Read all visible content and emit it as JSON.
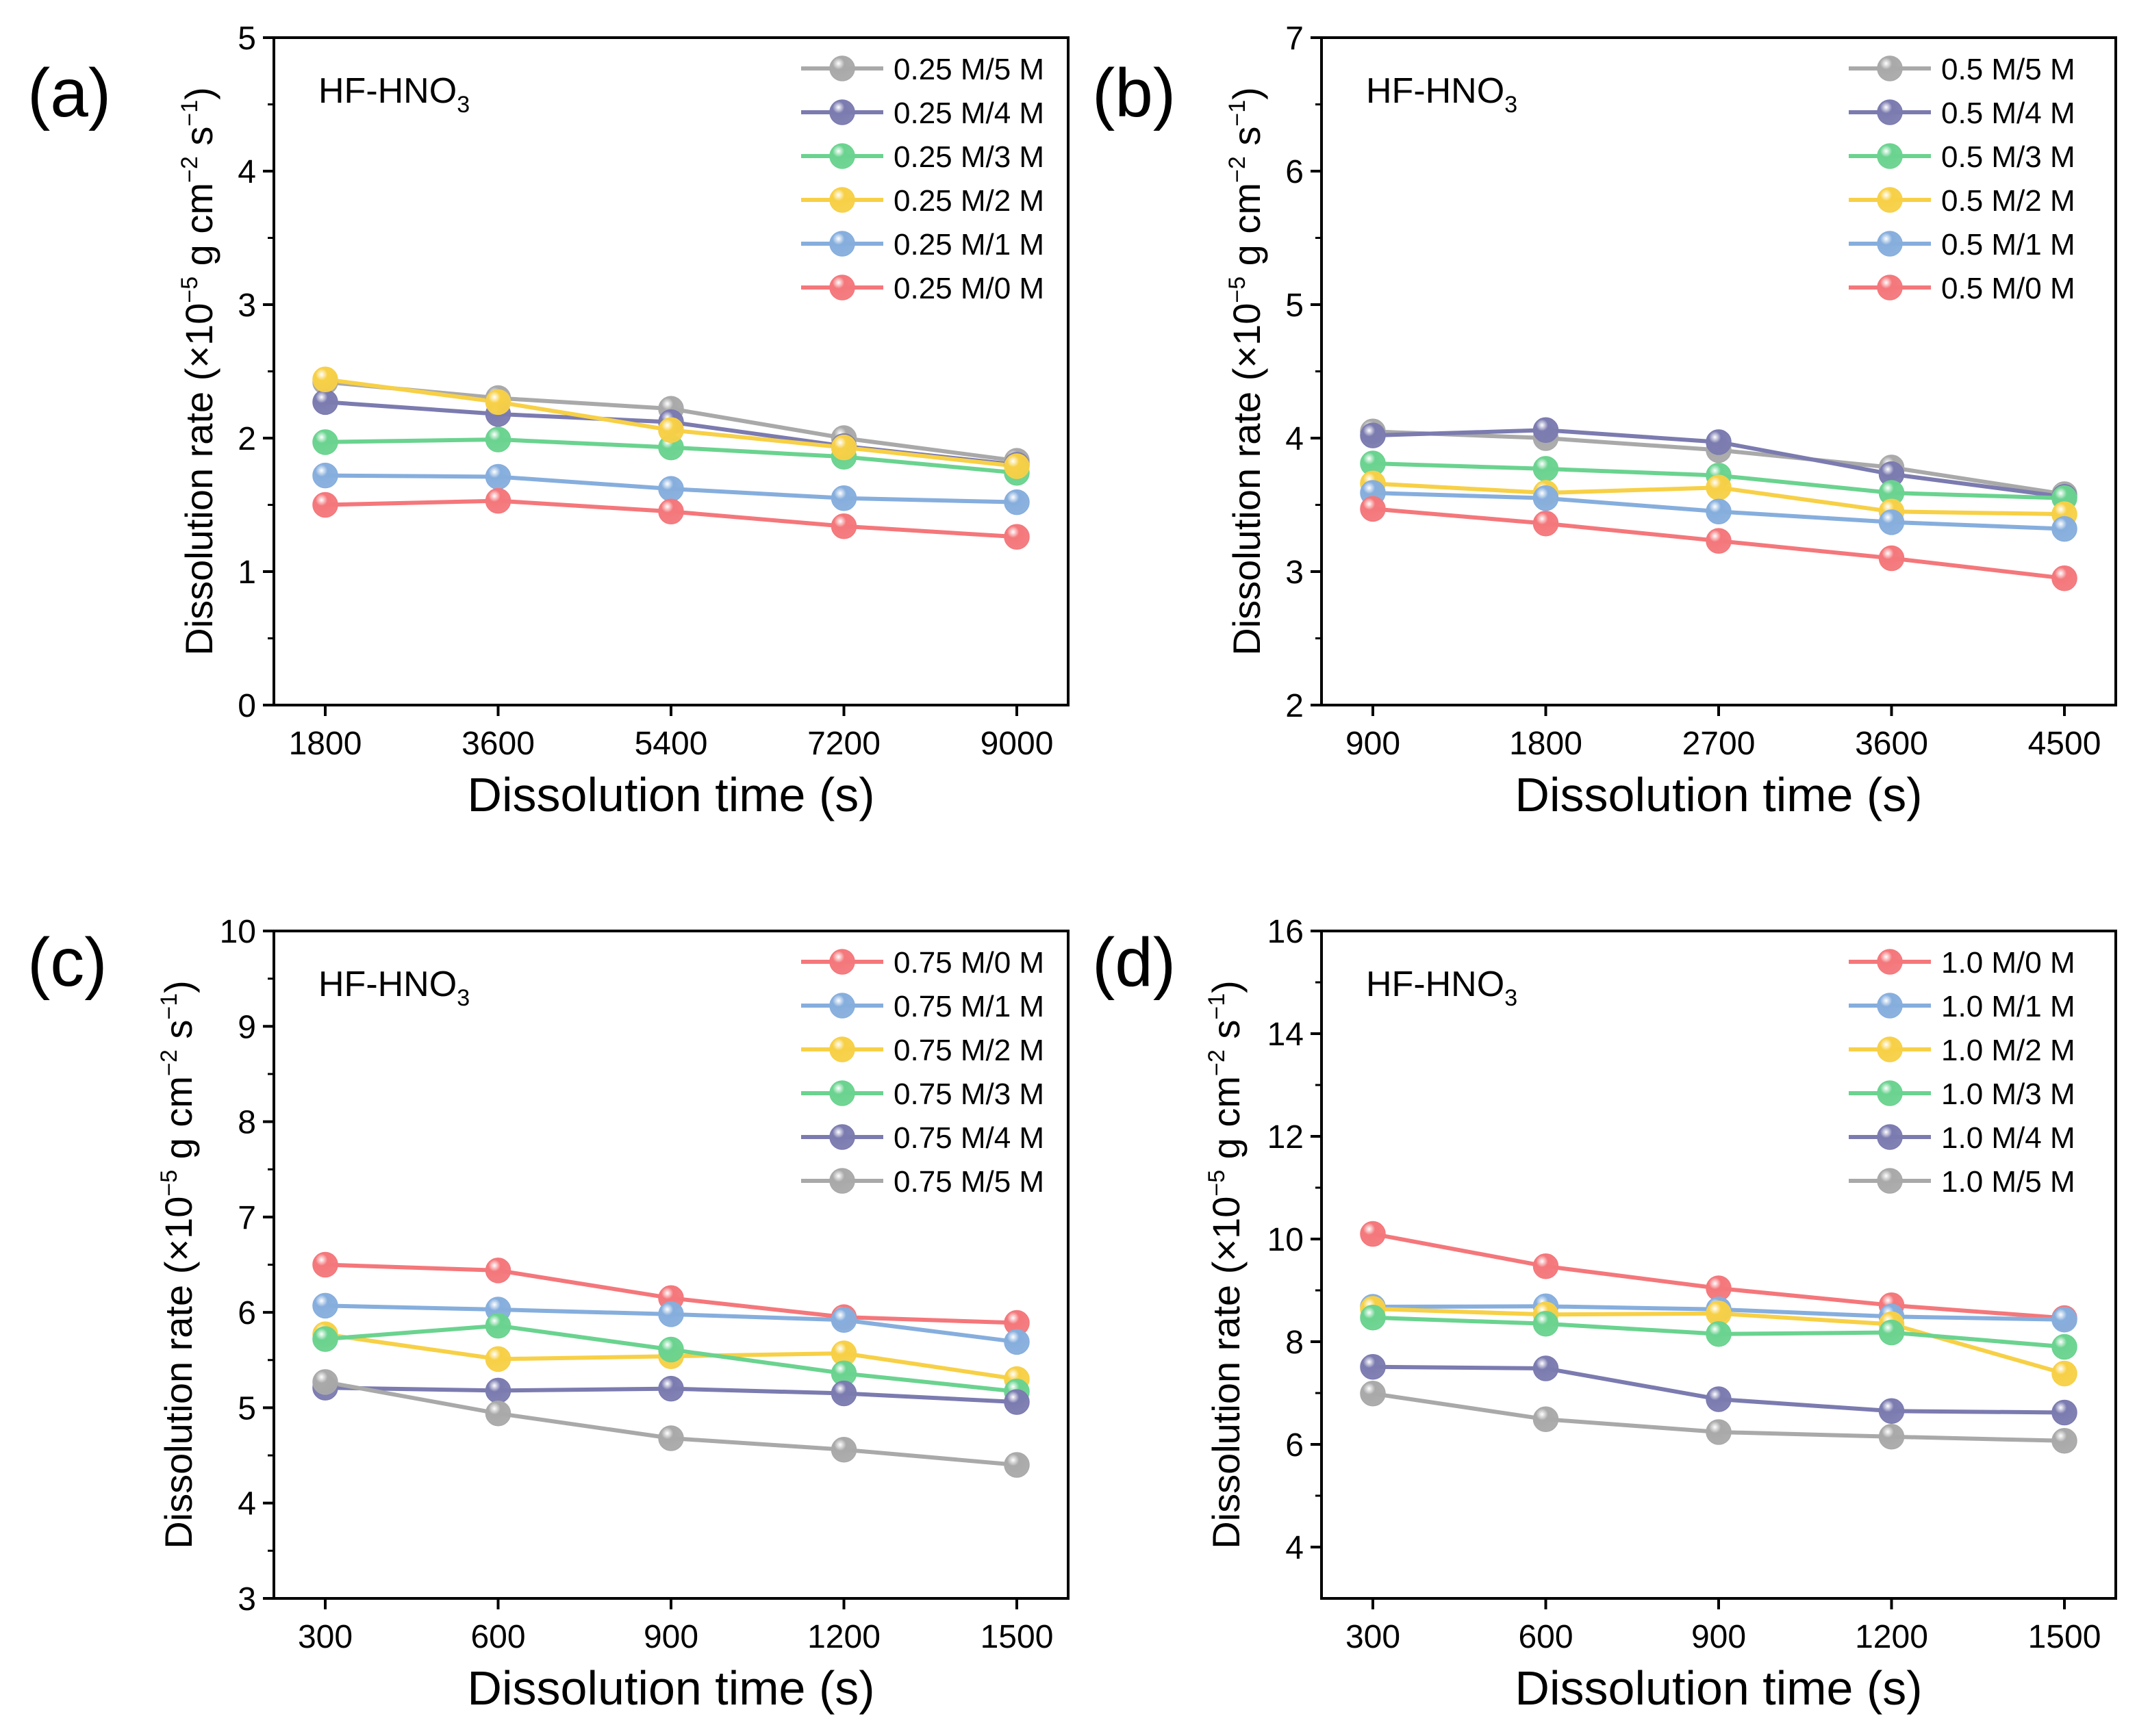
{
  "chart_data": [
    {
      "type": "line",
      "panel": "(a)",
      "annotation": {
        "main": "HF-HNO",
        "sub": "3"
      },
      "xlabel": "Dissolution time (s)",
      "ylabel": {
        "prefix": "Dissolution rate (×10",
        "exp1": "−5",
        "mid1": " g cm",
        "exp2": "−2",
        "mid2": " s",
        "exp3": "−1",
        "suffix": ")"
      },
      "categories": [
        "1800",
        "3600",
        "5400",
        "7200",
        "9000"
      ],
      "ylim": [
        0,
        5
      ],
      "yticks": [
        "0",
        "1",
        "2",
        "3",
        "4",
        "5"
      ],
      "legend_position": "top-right",
      "series": [
        {
          "name": "0.25 M/5 M",
          "color": "#a9a9a9",
          "values": [
            2.42,
            2.3,
            2.22,
            2.0,
            1.83
          ]
        },
        {
          "name": "0.25 M/4 M",
          "color": "#7b7bb0",
          "values": [
            2.27,
            2.18,
            2.12,
            1.94,
            1.8
          ]
        },
        {
          "name": "0.25 M/3 M",
          "color": "#6ad38f",
          "values": [
            1.97,
            1.99,
            1.93,
            1.86,
            1.74
          ]
        },
        {
          "name": "0.25 M/2 M",
          "color": "#f7d046",
          "values": [
            2.44,
            2.27,
            2.06,
            1.93,
            1.79
          ]
        },
        {
          "name": "0.25 M/1 M",
          "color": "#86aedd",
          "values": [
            1.72,
            1.71,
            1.62,
            1.55,
            1.52
          ]
        },
        {
          "name": "0.25 M/0 M",
          "color": "#f4777b",
          "values": [
            1.5,
            1.53,
            1.45,
            1.34,
            1.26
          ]
        }
      ]
    },
    {
      "type": "line",
      "panel": "(b)",
      "annotation": {
        "main": "HF-HNO",
        "sub": "3"
      },
      "xlabel": "Dissolution time (s)",
      "ylabel": {
        "prefix": "Dissolution rate (×10",
        "exp1": "−5",
        "mid1": " g cm",
        "exp2": "−2",
        "mid2": " s",
        "exp3": "−1",
        "suffix": ")"
      },
      "categories": [
        "900",
        "1800",
        "2700",
        "3600",
        "4500"
      ],
      "ylim": [
        2,
        7
      ],
      "yticks": [
        "2",
        "3",
        "4",
        "5",
        "6",
        "7"
      ],
      "legend_position": "top-right",
      "series": [
        {
          "name": "0.5 M/5 M",
          "color": "#a9a9a9",
          "values": [
            4.05,
            4.0,
            3.91,
            3.78,
            3.58
          ]
        },
        {
          "name": "0.5 M/4 M",
          "color": "#7b7bb0",
          "values": [
            4.02,
            4.06,
            3.97,
            3.73,
            3.56
          ]
        },
        {
          "name": "0.5 M/3 M",
          "color": "#6ad38f",
          "values": [
            3.81,
            3.77,
            3.72,
            3.59,
            3.55
          ]
        },
        {
          "name": "0.5 M/2 M",
          "color": "#f7d046",
          "values": [
            3.66,
            3.59,
            3.63,
            3.45,
            3.43
          ]
        },
        {
          "name": "0.5 M/1 M",
          "color": "#86aedd",
          "values": [
            3.59,
            3.55,
            3.45,
            3.37,
            3.32
          ]
        },
        {
          "name": "0.5 M/0 M",
          "color": "#f4777b",
          "values": [
            3.47,
            3.36,
            3.23,
            3.1,
            2.95
          ]
        }
      ]
    },
    {
      "type": "line",
      "panel": "(c)",
      "annotation": {
        "main": "HF-HNO",
        "sub": "3"
      },
      "xlabel": "Dissolution time (s)",
      "ylabel": {
        "prefix": "Dissolution rate (×10",
        "exp1": "−5",
        "mid1": " g cm",
        "exp2": "−2",
        "mid2": " s",
        "exp3": "−1",
        "suffix": ")"
      },
      "categories": [
        "300",
        "600",
        "900",
        "1200",
        "1500"
      ],
      "ylim": [
        3,
        10
      ],
      "yticks": [
        "3",
        "4",
        "5",
        "6",
        "7",
        "8",
        "9",
        "10"
      ],
      "legend_position": "top-right",
      "series": [
        {
          "name": "0.75 M/0 M",
          "color": "#f4777b",
          "values": [
            6.5,
            6.44,
            6.15,
            5.95,
            5.89
          ]
        },
        {
          "name": "0.75 M/1 M",
          "color": "#86aedd",
          "values": [
            6.07,
            6.03,
            5.98,
            5.92,
            5.69
          ]
        },
        {
          "name": "0.75 M/2 M",
          "color": "#f7d046",
          "values": [
            5.77,
            5.51,
            5.54,
            5.57,
            5.3
          ]
        },
        {
          "name": "0.75 M/3 M",
          "color": "#6ad38f",
          "values": [
            5.72,
            5.86,
            5.61,
            5.36,
            5.17
          ]
        },
        {
          "name": "0.75 M/4 M",
          "color": "#7b7bb0",
          "values": [
            5.21,
            5.18,
            5.2,
            5.15,
            5.06
          ]
        },
        {
          "name": "0.75 M/5 M",
          "color": "#a9a9a9",
          "values": [
            5.27,
            4.94,
            4.68,
            4.56,
            4.4
          ]
        }
      ]
    },
    {
      "type": "line",
      "panel": "(d)",
      "annotation": {
        "main": "HF-HNO",
        "sub": "3"
      },
      "xlabel": "Dissolution time (s)",
      "ylabel": {
        "prefix": "Dissolution rate (×10",
        "exp1": "−5",
        "mid1": " g cm",
        "exp2": "−2",
        "mid2": " s",
        "exp3": "−1",
        "suffix": ")"
      },
      "categories": [
        "300",
        "600",
        "900",
        "1200",
        "1500"
      ],
      "ylim": [
        3,
        16
      ],
      "yticks": [
        "4",
        "6",
        "8",
        "10",
        "12",
        "14",
        "16"
      ],
      "ytick_values": [
        4,
        6,
        8,
        10,
        12,
        14,
        16
      ],
      "legend_position": "top-right",
      "series": [
        {
          "name": "1.0 M/0 M",
          "color": "#f4777b",
          "values": [
            10.1,
            9.47,
            9.04,
            8.71,
            8.46
          ]
        },
        {
          "name": "1.0 M/1 M",
          "color": "#86aedd",
          "values": [
            8.68,
            8.69,
            8.63,
            8.49,
            8.43
          ]
        },
        {
          "name": "1.0 M/2 M",
          "color": "#f7d046",
          "values": [
            8.64,
            8.53,
            8.55,
            8.34,
            7.38
          ]
        },
        {
          "name": "1.0 M/3 M",
          "color": "#6ad38f",
          "values": [
            8.47,
            8.35,
            8.15,
            8.18,
            7.9
          ]
        },
        {
          "name": "1.0 M/4 M",
          "color": "#7b7bb0",
          "values": [
            7.51,
            7.48,
            6.88,
            6.65,
            6.62
          ]
        },
        {
          "name": "1.0 M/5 M",
          "color": "#a9a9a9",
          "values": [
            6.99,
            6.49,
            6.24,
            6.15,
            6.07
          ]
        }
      ]
    }
  ]
}
